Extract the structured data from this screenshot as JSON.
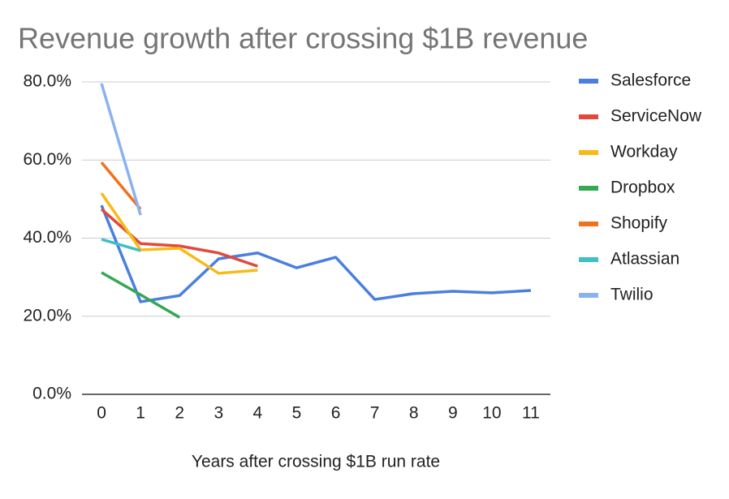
{
  "chart_data": {
    "type": "line",
    "title": "Revenue growth after crossing $1B revenue",
    "x_label": "Years after crossing $1B run rate",
    "x": [
      0,
      1,
      2,
      3,
      4,
      5,
      6,
      7,
      8,
      9,
      10,
      11
    ],
    "xlim": [
      -0.5,
      11.5
    ],
    "xticks": [
      0,
      1,
      2,
      3,
      4,
      5,
      6,
      7,
      8,
      9,
      10,
      11
    ],
    "ylim": [
      0,
      80
    ],
    "yticks": [
      {
        "value": 0,
        "label": "0.0%"
      },
      {
        "value": 20,
        "label": "20.0%"
      },
      {
        "value": 40,
        "label": "40.0%"
      },
      {
        "value": 60,
        "label": "60.0%"
      },
      {
        "value": 80,
        "label": "80.0%"
      }
    ],
    "grid": true,
    "legend": "right",
    "series": [
      {
        "name": "Salesforce",
        "color": "#4a7fe0",
        "values": [
          48.4,
          23.7,
          25.3,
          34.7,
          36.2,
          32.4,
          35.1,
          24.3,
          25.8,
          26.4,
          26.0,
          26.6
        ]
      },
      {
        "name": "ServiceNow",
        "color": "#e04a3c",
        "values": [
          47.4,
          38.6,
          38.0,
          36.2,
          32.8,
          null,
          null,
          null,
          null,
          null,
          null,
          null
        ]
      },
      {
        "name": "Workday",
        "color": "#f7bb16",
        "values": [
          51.5,
          37.0,
          37.4,
          31.0,
          31.8,
          null,
          null,
          null,
          null,
          null,
          null,
          null
        ]
      },
      {
        "name": "Dropbox",
        "color": "#34a853",
        "values": [
          31.2,
          25.5,
          19.7,
          null,
          null,
          null,
          null,
          null,
          null,
          null,
          null,
          null
        ]
      },
      {
        "name": "Shopify",
        "color": "#f2711c",
        "values": [
          59.4,
          47.4,
          null,
          null,
          null,
          null,
          null,
          null,
          null,
          null,
          null,
          null
        ]
      },
      {
        "name": "Atlassian",
        "color": "#3fbfc6",
        "values": [
          39.7,
          36.8,
          null,
          null,
          null,
          null,
          null,
          null,
          null,
          null,
          null,
          null
        ]
      },
      {
        "name": "Twilio",
        "color": "#8ab2f0",
        "values": [
          79.6,
          45.9,
          null,
          null,
          null,
          null,
          null,
          null,
          null,
          null,
          null,
          null
        ]
      }
    ]
  }
}
